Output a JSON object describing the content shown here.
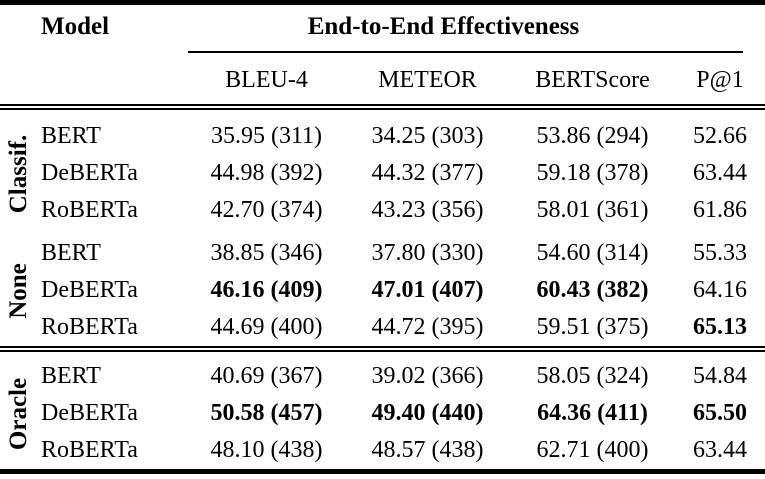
{
  "table": {
    "header": {
      "model_label": "Model",
      "group_header": "End-to-End Effectiveness",
      "metric_columns": [
        "BLEU-4",
        "METEOR",
        "BERTScore",
        "P@1"
      ]
    },
    "groups": [
      {
        "label": "Classif.",
        "bold_cells": [],
        "rows": [
          {
            "model": "BERT",
            "bleu4": "35.95 (311)",
            "meteor": "34.25 (303)",
            "bertscore": "53.86 (294)",
            "p1": "52.66"
          },
          {
            "model": "DeBERTa",
            "bleu4": "44.98 (392)",
            "meteor": "44.32 (377)",
            "bertscore": "59.18 (378)",
            "p1": "63.44"
          },
          {
            "model": "RoBERTa",
            "bleu4": "42.70 (374)",
            "meteor": "43.23 (356)",
            "bertscore": "58.01 (361)",
            "p1": "61.86"
          }
        ]
      },
      {
        "label": "None",
        "bold_cells": [
          "DeBERTa.bleu4",
          "DeBERTa.meteor",
          "DeBERTa.bertscore",
          "RoBERTa.p1"
        ],
        "rows": [
          {
            "model": "BERT",
            "bleu4": "38.85 (346)",
            "meteor": "37.80 (330)",
            "bertscore": "54.60 (314)",
            "p1": "55.33"
          },
          {
            "model": "DeBERTa",
            "bleu4": "46.16 (409)",
            "meteor": "47.01 (407)",
            "bertscore": "60.43 (382)",
            "p1": "64.16"
          },
          {
            "model": "RoBERTa",
            "bleu4": "44.69 (400)",
            "meteor": "44.72 (395)",
            "bertscore": "59.51 (375)",
            "p1": "65.13"
          }
        ]
      },
      {
        "label": "Oracle",
        "bold_cells": [
          "DeBERTa.bleu4",
          "DeBERTa.meteor",
          "DeBERTa.bertscore",
          "DeBERTa.p1"
        ],
        "rows": [
          {
            "model": "BERT",
            "bleu4": "40.69 (367)",
            "meteor": "39.02 (366)",
            "bertscore": "58.05 (324)",
            "p1": "54.84"
          },
          {
            "model": "DeBERTa",
            "bleu4": "50.58 (457)",
            "meteor": "49.40 (440)",
            "bertscore": "64.36 (411)",
            "p1": "65.50"
          },
          {
            "model": "RoBERTa",
            "bleu4": "48.10 (438)",
            "meteor": "48.57 (438)",
            "bertscore": "62.71 (400)",
            "p1": "63.44"
          }
        ]
      }
    ]
  }
}
